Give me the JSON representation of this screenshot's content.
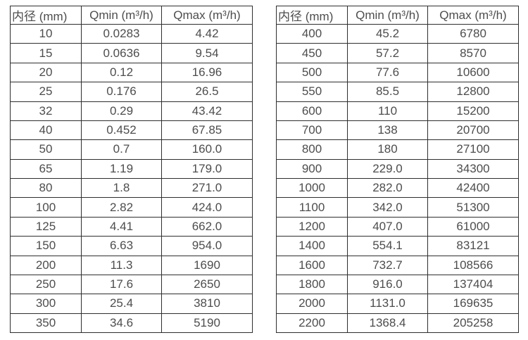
{
  "colors": {
    "background": "#ffffff",
    "border": "#2e2e2e",
    "text": "#4d4d4d"
  },
  "tables": [
    {
      "title": "flow-rate-table-small-diameters",
      "headers": [
        "内径 (mm)",
        "Qmin (m³/h)",
        "Qmax (m³/h)"
      ],
      "rows": [
        [
          "10",
          "0.0283",
          "4.42"
        ],
        [
          "15",
          "0.0636",
          "9.54"
        ],
        [
          "20",
          "0.12",
          "16.96"
        ],
        [
          "25",
          "0.176",
          "26.5"
        ],
        [
          "32",
          "0.29",
          "43.42"
        ],
        [
          "40",
          "0.452",
          "67.85"
        ],
        [
          "50",
          "0.7",
          "160.0"
        ],
        [
          "65",
          "1.19",
          "179.0"
        ],
        [
          "80",
          "1.8",
          "271.0"
        ],
        [
          "100",
          "2.82",
          "424.0"
        ],
        [
          "125",
          "4.41",
          "662.0"
        ],
        [
          "150",
          "6.63",
          "954.0"
        ],
        [
          "200",
          "11.3",
          "1690"
        ],
        [
          "250",
          "17.6",
          "2650"
        ],
        [
          "300",
          "25.4",
          "3810"
        ],
        [
          "350",
          "34.6",
          "5190"
        ]
      ]
    },
    {
      "title": "flow-rate-table-large-diameters",
      "headers": [
        "内径 (mm)",
        "Qmin (m³/h)",
        "Qmax (m³/h)"
      ],
      "rows": [
        [
          "400",
          "45.2",
          "6780"
        ],
        [
          "450",
          "57.2",
          "8570"
        ],
        [
          "500",
          "77.6",
          "10600"
        ],
        [
          "550",
          "85.5",
          "12800"
        ],
        [
          "600",
          "110",
          "15200"
        ],
        [
          "700",
          "138",
          "20700"
        ],
        [
          "800",
          "180",
          "27100"
        ],
        [
          "900",
          "229.0",
          "34300"
        ],
        [
          "1000",
          "282.0",
          "42400"
        ],
        [
          "1100",
          "342.0",
          "51300"
        ],
        [
          "1200",
          "407.0",
          "61000"
        ],
        [
          "1400",
          "554.1",
          "83121"
        ],
        [
          "1600",
          "732.7",
          "108566"
        ],
        [
          "1800",
          "916.0",
          "137404"
        ],
        [
          "2000",
          "1131.0",
          "169635"
        ],
        [
          "2200",
          "1368.4",
          "205258"
        ]
      ]
    }
  ]
}
